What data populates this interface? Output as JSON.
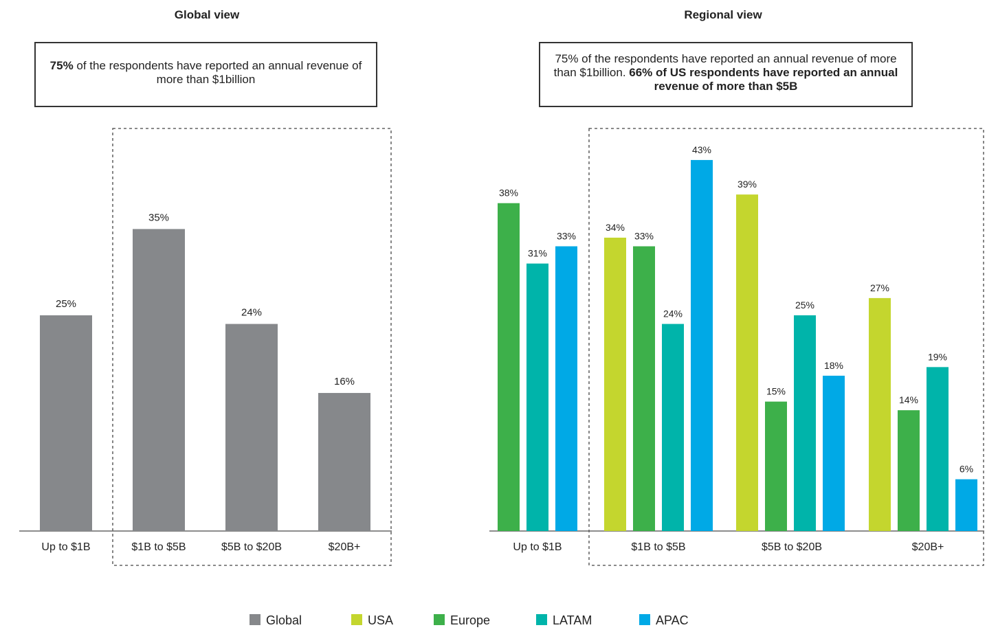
{
  "panels": {
    "global": {
      "title": "Global view",
      "callout_bold": "75%",
      "callout_rest": " of the respondents have reported an annual revenue of more than $1billion"
    },
    "regional": {
      "title": "Regional view",
      "callout_plain": "75% of the respondents have reported an annual revenue of more than $1billion. ",
      "callout_bold": "66% of US respondents have reported an annual revenue of more than $5B"
    }
  },
  "colors": {
    "Global": "#86888b",
    "USA": "#c4d62e",
    "Europe": "#3db04a",
    "LATAM": "#00b4aa",
    "APAC": "#00a9e6"
  },
  "legend": [
    "Global",
    "USA",
    "Europe",
    "LATAM",
    "APAC"
  ],
  "chart_data": [
    {
      "type": "bar",
      "title": "Global view",
      "categories": [
        "Up to $1B",
        "$1B to $5B",
        "$5B to $20B",
        "$20B+"
      ],
      "series": [
        {
          "name": "Global",
          "values": [
            25,
            35,
            24,
            16
          ]
        }
      ],
      "value_labels": [
        "25%",
        "35%",
        "24%",
        "16%"
      ],
      "ylim": [
        0,
        50
      ]
    },
    {
      "type": "bar",
      "title": "Regional view",
      "categories": [
        "Up to $1B",
        "$1B to $5B",
        "$5B to $20B",
        "$20B+"
      ],
      "series": [
        {
          "name": "USA",
          "values": [
            null,
            34,
            39,
            27
          ]
        },
        {
          "name": "Europe",
          "values": [
            38,
            33,
            15,
            14
          ]
        },
        {
          "name": "LATAM",
          "values": [
            31,
            24,
            25,
            19
          ]
        },
        {
          "name": "APAC",
          "values": [
            33,
            43,
            18,
            6
          ]
        }
      ],
      "ylim": [
        0,
        50
      ]
    }
  ]
}
